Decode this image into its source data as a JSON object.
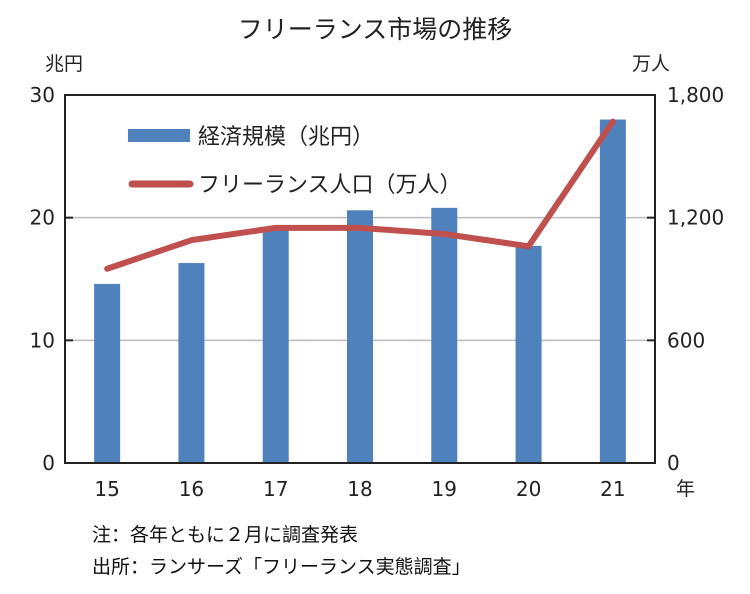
{
  "chart_data": {
    "type": "bar+line",
    "title": "フリーランス市場の推移",
    "ylabel_left": "兆円",
    "ylabel_right": "万人",
    "xlabel": "年",
    "categories": [
      "15",
      "16",
      "17",
      "18",
      "19",
      "20",
      "21"
    ],
    "ylim_left": [
      0,
      30
    ],
    "ylim_right": [
      0,
      1800
    ],
    "yticks_left": [
      "0",
      "10",
      "20",
      "30"
    ],
    "yticks_right": [
      "0",
      "600",
      "1,200",
      "1,800"
    ],
    "grid": true,
    "legend_position": "top-left",
    "series": [
      {
        "name": "経済規模（兆円）",
        "type": "bar",
        "axis": "left",
        "color": "#4f81bd",
        "values": [
          14.6,
          16.3,
          19.0,
          20.6,
          20.8,
          17.7,
          28.0
        ]
      },
      {
        "name": "フリーランス人口（万人）",
        "type": "line",
        "axis": "right",
        "color": "#c0504d",
        "values": [
          950,
          1090,
          1150,
          1150,
          1120,
          1060,
          1670
        ]
      }
    ]
  },
  "notes": [
    "注：各年ともに２月に調査発表",
    "出所：ランサーズ「フリーランス実態調査」"
  ]
}
